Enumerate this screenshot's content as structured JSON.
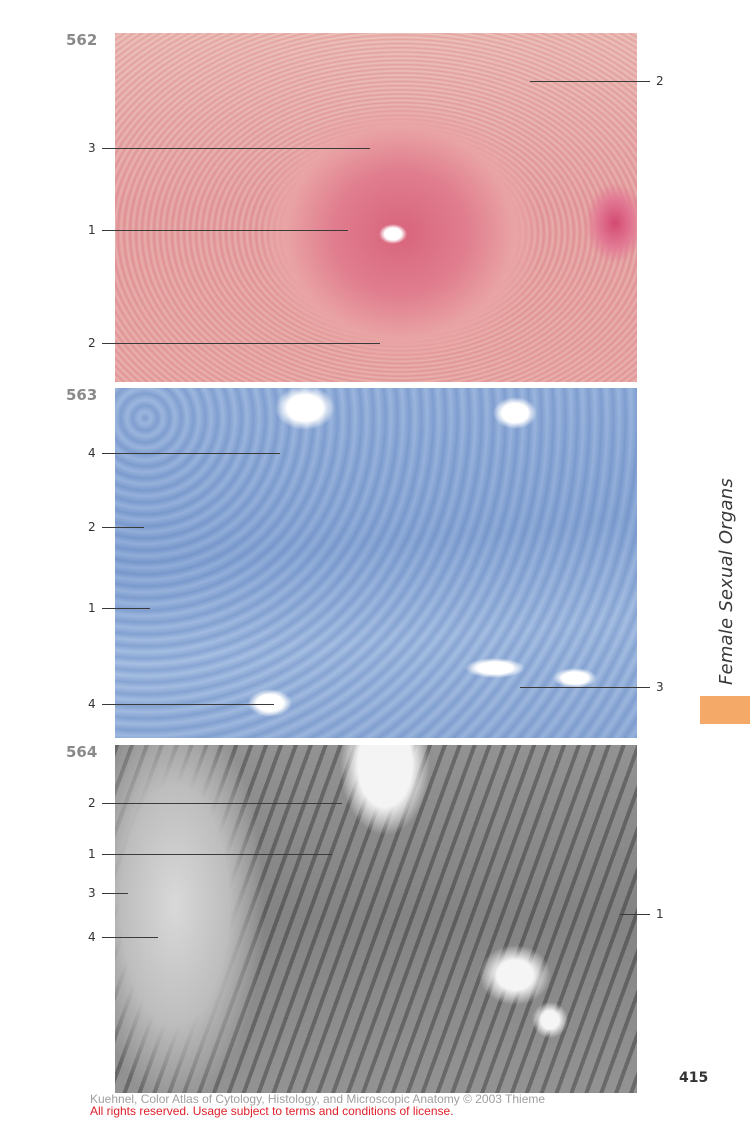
{
  "figures": [
    {
      "number": "562",
      "labels_left": [
        "3",
        "1",
        "2"
      ],
      "labels_right": [
        "2"
      ]
    },
    {
      "number": "563",
      "labels_left": [
        "4",
        "2",
        "1",
        "4"
      ],
      "labels_right": [
        "3"
      ]
    },
    {
      "number": "564",
      "labels_left": [
        "2",
        "1",
        "3",
        "4"
      ],
      "labels_right": [
        "1"
      ]
    }
  ],
  "side_title": "Female Sexual Organs",
  "page_number": "415",
  "footer": {
    "line1": "Kuehnel, Color Atlas of Cytology, Histology, and Microscopic Anatomy © 2003 Thieme",
    "line2": "All rights reserved. Usage subject to terms and conditions of license."
  },
  "colors": {
    "tab_accent": "#f5a968",
    "license_text": "#e0202a"
  }
}
